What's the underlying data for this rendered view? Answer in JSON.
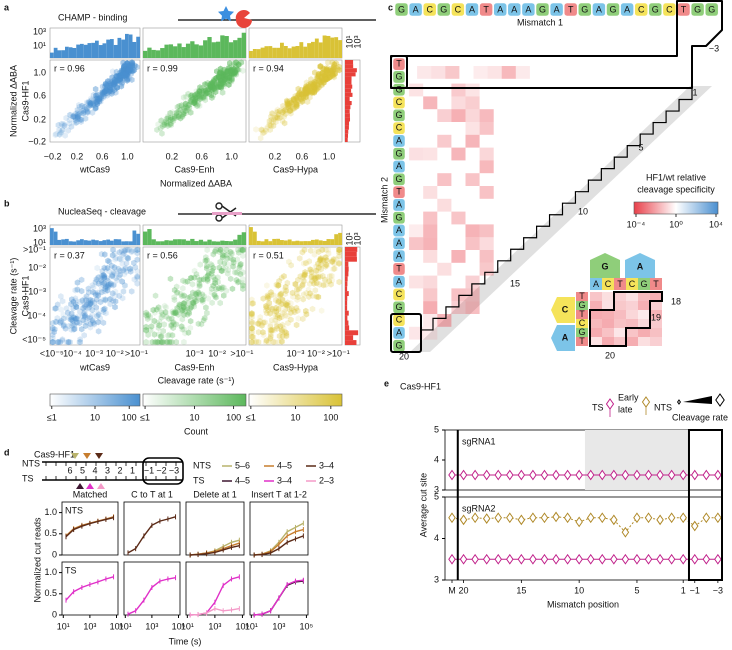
{
  "a": {
    "label": "a",
    "title": "CHAMP - binding",
    "y_label": [
      "Normalized ΔABA",
      "Cas9-HF1"
    ],
    "x_label": "Normalized ΔABA",
    "hist_ticks": [
      "10³",
      "10¹"
    ],
    "side_hist_ticks": [
      "10¹",
      "10³"
    ],
    "yticks": [
      "1.0",
      "0.6",
      "0.2",
      "−0.2"
    ],
    "side_color": "#e8403a",
    "plots": [
      {
        "name": "wtCas9",
        "r": "r = 0.96",
        "color": "#4a90d0",
        "xticks": [
          "−0.2",
          "0.2",
          "0.6",
          "1.0"
        ]
      },
      {
        "name": "Cas9-Enh",
        "r": "r = 0.99",
        "color": "#5cb85c",
        "xticks": [
          "0.2",
          "0.6",
          "1.0"
        ]
      },
      {
        "name": "Cas9-Hypa",
        "r": "r = 0.94",
        "color": "#d9c236",
        "xticks": [
          "0.2",
          "0.6",
          "1.0"
        ]
      }
    ]
  },
  "b": {
    "label": "b",
    "title": "NucleaSeq - cleavage",
    "y_label": [
      "Cleavage rate (s⁻¹)",
      "Cas9-HF1"
    ],
    "x_label": "Cleavage rate (s⁻¹)",
    "hist_ticks": [
      "10³",
      "10¹"
    ],
    "side_hist_ticks": [
      "10¹",
      "10³"
    ],
    "yticks": [
      ">10⁻¹",
      "10⁻²",
      "10⁻³",
      "10⁻⁴",
      "<10⁻⁵"
    ],
    "side_color": "#e8403a",
    "plots": [
      {
        "name": "wtCas9",
        "r": "r = 0.37",
        "color": "#4a90d0",
        "xticks": [
          "<10⁻⁵",
          "10⁻⁴",
          "10⁻³",
          "10⁻²",
          ">10⁻¹"
        ]
      },
      {
        "name": "Cas9-Enh",
        "r": "r = 0.56",
        "color": "#5cb85c",
        "xticks": [
          "10⁻³",
          "10⁻²",
          ">10⁻¹"
        ]
      },
      {
        "name": "Cas9-Hypa",
        "r": "r = 0.51",
        "color": "#d9c236",
        "xticks": [
          "10⁻³",
          "10⁻²",
          ">10⁻¹"
        ]
      }
    ],
    "colorbars": [
      {
        "color": "#4a90d0",
        "ticks": [
          "≤1",
          "10",
          "100"
        ]
      },
      {
        "color": "#5cb85c",
        "ticks": [
          "≤1",
          "10",
          "100"
        ]
      },
      {
        "color": "#d9c236",
        "ticks": [
          "≤1",
          "10",
          "100"
        ]
      }
    ],
    "colorbar_label": "Count"
  },
  "c": {
    "label": "c",
    "row_label": "Mismatch 1",
    "col_label": "Mismatch 2",
    "row_seq": [
      "G",
      "A",
      "C",
      "G",
      "C",
      "A",
      "T",
      "A",
      "A",
      "A",
      "G",
      "A",
      "T",
      "G",
      "A",
      "G",
      "A",
      "C",
      "G",
      "C",
      "T",
      "G",
      "G"
    ],
    "col_seq": [
      "T",
      "G",
      "G",
      "C",
      "G",
      "C",
      "A",
      "G",
      "A",
      "G",
      "T",
      "A",
      "G",
      "A",
      "A",
      "A",
      "T",
      "A",
      "C",
      "G",
      "C",
      "A",
      "G"
    ],
    "positions": [
      "1",
      "5",
      "10",
      "15",
      "20",
      "−3"
    ],
    "colorbar_title": [
      "HF1/wt relative",
      "cleavage specificity"
    ],
    "colorbar_ticks": [
      "10⁻⁴",
      "10⁰",
      "10⁴"
    ],
    "inset": {
      "top": [
        "G",
        "A"
      ],
      "top_sub": [
        "A",
        "C",
        "T",
        "C",
        "G",
        "T"
      ],
      "left": [
        "C",
        "A"
      ],
      "left_sub": [
        "T",
        "G",
        "T",
        "C",
        "G",
        "T"
      ],
      "positions": [
        "18",
        "19",
        "20"
      ]
    }
  },
  "d": {
    "label": "d",
    "title": "Cas9-HF1",
    "strands": [
      "NTS",
      "TS"
    ],
    "schematic_positions": [
      "6",
      "5",
      "4",
      "3",
      "2",
      "1",
      "−1",
      "−2",
      "−3"
    ],
    "legend": [
      {
        "strand": "NTS",
        "entries": [
          {
            "name": "5–6",
            "color": "#b9b36c"
          },
          {
            "name": "4–5",
            "color": "#c77d2e"
          },
          {
            "name": "3–4",
            "color": "#5b2a17"
          }
        ]
      },
      {
        "strand": "TS",
        "entries": [
          {
            "name": "4–5",
            "color": "#3d1530"
          },
          {
            "name": "3–4",
            "color": "#e030c8"
          },
          {
            "name": "2–3",
            "color": "#f49ac8"
          }
        ]
      }
    ],
    "row_labels": [
      "NTS",
      "TS"
    ],
    "y_label": "Normalized cut reads",
    "x_label": "Time (s)",
    "x": [
      16,
      60,
      250,
      1000,
      4000,
      16000,
      60000
    ],
    "xlim": [
      8,
      130000
    ],
    "log_x": true,
    "ylim": [
      0,
      1.25
    ],
    "yticks": [
      {
        "value": 1,
        "label": "1.0"
      },
      0.5,
      0
    ],
    "xticks": [
      {
        "value": 10,
        "label": "10¹"
      },
      {
        "value": 1000,
        "label": "10³"
      },
      {
        "value": 100000,
        "label": "10⁵"
      }
    ],
    "panels": [
      {
        "title": "Matched",
        "rows": [
          [
            {
              "color": "#c77d2e",
              "values": [
                0.45,
                0.62,
                0.7,
                0.75,
                0.8,
                0.85,
                0.9
              ]
            },
            {
              "color": "#5b2a17",
              "values": [
                0.43,
                0.6,
                0.68,
                0.74,
                0.79,
                0.84,
                0.88
              ]
            }
          ],
          [
            {
              "color": "#e030c8",
              "values": [
                0.35,
                0.55,
                0.65,
                0.72,
                0.78,
                0.85,
                0.9
              ]
            }
          ]
        ]
      },
      {
        "title": "C to T at 1",
        "rows": [
          [
            {
              "color": "#5b2a17",
              "values": [
                0.05,
                0.15,
                0.45,
                0.7,
                0.8,
                0.85,
                0.9
              ]
            }
          ],
          [
            {
              "color": "#e030c8",
              "values": [
                0.02,
                0.1,
                0.35,
                0.65,
                0.8,
                0.85,
                0.88
              ]
            }
          ]
        ]
      },
      {
        "title": "Delete at 1",
        "rows": [
          [
            {
              "color": "#b9b36c",
              "values": [
                0,
                0.02,
                0.05,
                0.1,
                0.2,
                0.3,
                0.35
              ]
            },
            {
              "color": "#c77d2e",
              "values": [
                0,
                0.02,
                0.05,
                0.08,
                0.15,
                0.22,
                0.28
              ]
            },
            {
              "color": "#5b2a17",
              "values": [
                0,
                0.01,
                0.03,
                0.06,
                0.12,
                0.18,
                0.22
              ]
            }
          ],
          [
            {
              "color": "#e030c8",
              "values": [
                0,
                0.01,
                0.05,
                0.3,
                0.7,
                0.85,
                0.9
              ]
            },
            {
              "color": "#f49ac8",
              "values": [
                0,
                0.01,
                0.05,
                0.15,
                0.1,
                0.12,
                0.15
              ]
            }
          ]
        ]
      },
      {
        "title": "Insert T at 1-2",
        "rows": [
          [
            {
              "color": "#b9b36c",
              "values": [
                0,
                0.02,
                0.1,
                0.3,
                0.55,
                0.65,
                0.75
              ]
            },
            {
              "color": "#c77d2e",
              "values": [
                0,
                0.02,
                0.08,
                0.25,
                0.45,
                0.55,
                0.6
              ]
            },
            {
              "color": "#5b2a17",
              "values": [
                0,
                0.01,
                0.05,
                0.15,
                0.3,
                0.38,
                0.45
              ]
            }
          ],
          [
            {
              "color": "#3d1530",
              "values": [
                0,
                0.02,
                0.1,
                0.4,
                0.7,
                0.78,
                0.8
              ]
            },
            {
              "color": "#e030c8",
              "values": [
                0,
                0.02,
                0.1,
                0.4,
                0.72,
                0.8,
                0.82
              ]
            }
          ]
        ]
      }
    ]
  },
  "e": {
    "label": "e",
    "title": "Cas9-HF1",
    "legend": {
      "ts": "TS",
      "early": "Early",
      "late": "late",
      "nts": "NTS",
      "rate": "Cleavage rate"
    },
    "categories": [
      "M",
      "20",
      null,
      null,
      null,
      null,
      "15",
      null,
      null,
      null,
      null,
      "10",
      null,
      null,
      null,
      null,
      "5",
      null,
      null,
      null,
      "1",
      "−1",
      null,
      "−3"
    ],
    "ylim": [
      3,
      5
    ],
    "yticks": [
      5,
      4,
      3
    ],
    "y_label": "Average cut site",
    "x_label": "Mismatch position",
    "panels": [
      {
        "name": "sgRNA1",
        "series": [
          {
            "color": "#c0208a",
            "values": [
              3.5,
              3.5,
              3.5,
              3.5,
              3.5,
              3.5,
              3.5,
              3.5,
              3.5,
              3.5,
              3.5,
              3.5,
              3.5,
              3.5,
              3.5,
              3.5,
              3.5,
              3.5,
              3.5,
              3.5,
              3.5,
              3.5,
              3.5,
              3.5
            ]
          }
        ]
      },
      {
        "name": "sgRNA2",
        "series": [
          {
            "color": "#b08a2a",
            "values": [
              4.5,
              4.45,
              4.5,
              4.48,
              4.5,
              4.5,
              4.45,
              4.5,
              4.5,
              4.52,
              4.5,
              4.4,
              4.5,
              4.5,
              4.45,
              4.15,
              4.5,
              4.5,
              4.45,
              4.5,
              4.5,
              4.3,
              4.5,
              4.5
            ]
          },
          {
            "color": "#c0208a",
            "values": [
              3.5,
              3.5,
              3.5,
              3.5,
              3.5,
              3.5,
              3.5,
              3.5,
              3.5,
              3.5,
              3.5,
              3.5,
              3.5,
              3.5,
              3.5,
              3.5,
              3.5,
              3.5,
              3.5,
              3.5,
              3.5,
              3.5,
              3.5,
              3.5
            ]
          }
        ]
      }
    ]
  }
}
